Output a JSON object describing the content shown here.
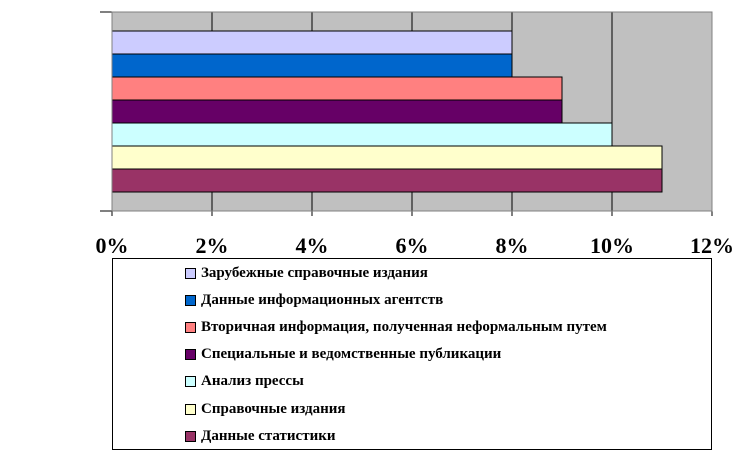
{
  "chart_data": {
    "type": "bar",
    "orientation": "horizontal",
    "title": "",
    "xlabel": "",
    "ylabel": "",
    "xlim": [
      0,
      12
    ],
    "x_unit": "%",
    "x_ticks": [
      "0%",
      "2%",
      "4%",
      "6%",
      "8%",
      "10%",
      "12%"
    ],
    "grid": true,
    "plot_background": "#c0c0c0",
    "legend_position": "bottom",
    "series": [
      {
        "name": "Зарубежные справочные издания",
        "value": 8,
        "color": "#ccccff"
      },
      {
        "name": "Данные информационных агентств",
        "value": 8,
        "color": "#0066cc"
      },
      {
        "name": "Вторичная информация, полученная неформальным путем",
        "value": 9,
        "color": "#ff8080"
      },
      {
        "name": "Специальные и ведомственные публикации",
        "value": 9,
        "color": "#660066"
      },
      {
        "name": "Анализ прессы",
        "value": 10,
        "color": "#ccffff"
      },
      {
        "name": "Справочные издания",
        "value": 11,
        "color": "#ffffcc"
      },
      {
        "name": "Данные статистики",
        "value": 11,
        "color": "#993366"
      }
    ]
  }
}
